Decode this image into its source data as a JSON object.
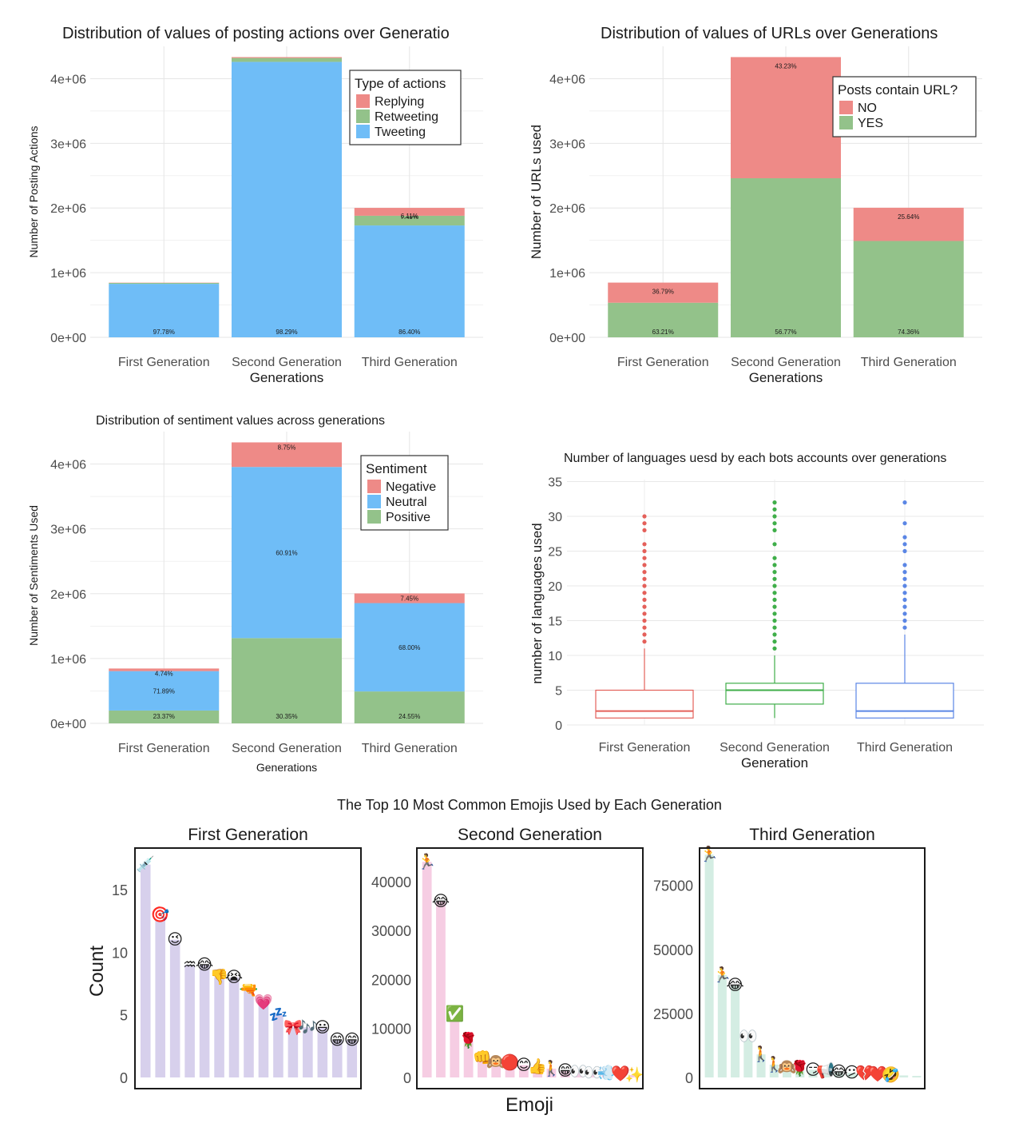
{
  "chart_data": [
    {
      "type": "bar",
      "stacked": true,
      "title": "Distribution of values of posting actions over Generatio",
      "xlabel": "Generations",
      "ylabel": "Number of Posting Actions",
      "categories": [
        "First Generation",
        "Second Generation",
        "Third Generation"
      ],
      "ylim": [
        0,
        4500000
      ],
      "yticks": [
        "0e+00",
        "1e+06",
        "2e+06",
        "3e+06",
        "4e+06"
      ],
      "legend": {
        "title": "Type of actions",
        "position": "top-right"
      },
      "series": [
        {
          "name": "Tweeting",
          "color": "#6fbdf7",
          "values": [
            827000,
            4260000,
            1730000
          ],
          "labels": [
            "97.78%",
            "98.29%",
            "86.40%"
          ]
        },
        {
          "name": "Retweeting",
          "color": "#93c28a",
          "values": [
            14000,
            60000,
            150000
          ],
          "labels": [
            "",
            "",
            "7.49%"
          ]
        },
        {
          "name": "Replying",
          "color": "#ee8a87",
          "values": [
            4000,
            14000,
            122000
          ],
          "labels": [
            "",
            "",
            "6.11%"
          ]
        }
      ]
    },
    {
      "type": "bar",
      "stacked": true,
      "title": "Distribution of values of URLs over Generations",
      "xlabel": "Generations",
      "ylabel": "Number of URLs used",
      "categories": [
        "First Generation",
        "Second Generation",
        "Third Generation"
      ],
      "ylim": [
        0,
        4500000
      ],
      "yticks": [
        "0e+00",
        "1e+06",
        "2e+06",
        "3e+06",
        "4e+06"
      ],
      "legend": {
        "title": "Posts contain URL?",
        "position": "top-right"
      },
      "series": [
        {
          "name": "YES",
          "color": "#93c28a",
          "values": [
            535000,
            2460000,
            1490000
          ],
          "labels": [
            "63.21%",
            "56.77%",
            "74.36%"
          ]
        },
        {
          "name": "NO",
          "color": "#ee8a87",
          "values": [
            311000,
            1874000,
            514000
          ],
          "labels": [
            "36.79%",
            "43.23%",
            "25.64%"
          ]
        }
      ]
    },
    {
      "type": "bar",
      "stacked": true,
      "title": "Distribution of sentiment values across generations",
      "xlabel": "Generations",
      "ylabel": "Number of Sentiments Used",
      "categories": [
        "First Generation",
        "Second Generation",
        "Third Generation"
      ],
      "ylim": [
        0,
        4500000
      ],
      "yticks": [
        "0e+00",
        "1e+06",
        "2e+06",
        "3e+06",
        "4e+06"
      ],
      "legend": {
        "title": "Sentiment",
        "position": "top-right"
      },
      "series": [
        {
          "name": "Positive",
          "color": "#93c28a",
          "values": [
            198000,
            1315000,
            492000
          ],
          "labels": [
            "23.37%",
            "30.35%",
            "24.55%"
          ]
        },
        {
          "name": "Neutral",
          "color": "#6fbdf7",
          "values": [
            608000,
            2640000,
            1363000
          ],
          "labels": [
            "71.89%",
            "60.91%",
            "68.00%"
          ]
        },
        {
          "name": "Negative",
          "color": "#ee8a87",
          "values": [
            40000,
            379000,
            149000
          ],
          "labels": [
            "4.74%",
            "8.75%",
            "7.45%"
          ]
        }
      ]
    },
    {
      "type": "box",
      "title": "Number of languages uesd by each bots accounts over generations",
      "xlabel": "Generation",
      "ylabel": "number of languages used",
      "categories": [
        "First Generation",
        "Second Generation",
        "Third Generation"
      ],
      "ylim": [
        0,
        35
      ],
      "yticks": [
        0,
        5,
        10,
        15,
        20,
        25,
        30,
        35
      ],
      "boxes": [
        {
          "color": "#e4605a",
          "min": 1,
          "q1": 1,
          "median": 2,
          "q3": 5,
          "max": 11,
          "outliers": [
            12,
            13,
            14,
            15,
            16,
            17,
            18,
            19,
            20,
            21,
            22,
            23,
            24,
            25,
            26,
            28,
            29,
            30
          ]
        },
        {
          "color": "#3fae49",
          "min": 1,
          "q1": 3,
          "median": 5,
          "q3": 6,
          "max": 10,
          "outliers": [
            11,
            12,
            13,
            14,
            15,
            16,
            17,
            18,
            19,
            20,
            21,
            22,
            23,
            24,
            26,
            28,
            29,
            30,
            31,
            32
          ]
        },
        {
          "color": "#5b86e5",
          "min": 1,
          "q1": 1,
          "median": 2,
          "q3": 6,
          "max": 13,
          "outliers": [
            14,
            15,
            16,
            17,
            18,
            19,
            20,
            21,
            22,
            23,
            25,
            26,
            27,
            29,
            32
          ]
        }
      ]
    },
    {
      "type": "bar",
      "title": "The Top 10 Most Common Emojis Used by Each Generation",
      "xlabel": "Emoji",
      "ylabel": "Count",
      "panels": [
        {
          "name": "First Generation",
          "color": "#d7d0ec",
          "ylim": [
            0,
            18
          ],
          "yticks": [
            0,
            5,
            10,
            15
          ],
          "values": [
            17,
            13,
            11,
            9,
            9,
            8,
            8,
            7,
            6,
            5,
            4,
            4,
            4,
            3,
            3
          ],
          "emojis": [
            "💉",
            "🎯",
            "😉",
            "♒",
            "😂",
            "👎",
            "😭",
            "🔫",
            "💗",
            "💤",
            "🎀",
            "🎶",
            "😃",
            "😁",
            "😁"
          ]
        },
        {
          "name": "Second Generation",
          "color": "#f6cde3",
          "ylim": [
            0,
            46000
          ],
          "yticks": [
            0,
            10000,
            20000,
            30000,
            40000
          ],
          "values": [
            44000,
            36000,
            13000,
            7500,
            4000,
            3200,
            3000,
            2500,
            2200,
            1800,
            1400,
            1200,
            1000,
            900,
            700,
            500
          ],
          "emojis": [
            "🏃",
            "😂",
            "✅",
            "🌹",
            "👊",
            "🙉",
            "🔴",
            "😊",
            "👍",
            "🚶",
            "😁",
            "👀",
            "👀",
            "💨",
            "❤️",
            "✨"
          ]
        },
        {
          "name": "Third Generation",
          "color": "#d4ede3",
          "ylim": [
            0,
            88000
          ],
          "yticks": [
            0,
            25000,
            50000,
            75000
          ],
          "values": [
            87000,
            40000,
            36000,
            16000,
            9000,
            5000,
            4000,
            3500,
            3000,
            2600,
            2200,
            1800,
            1500,
            1200,
            1000,
            800,
            600
          ],
          "emojis": [
            "🏃",
            "🏃",
            "😂",
            "👀",
            "🚶",
            "🚶",
            "🙉",
            "🌹",
            "😏",
            "📢",
            "😂",
            "😕",
            "💔",
            "❤️",
            "🤣",
            "",
            ""
          ]
        }
      ]
    }
  ]
}
